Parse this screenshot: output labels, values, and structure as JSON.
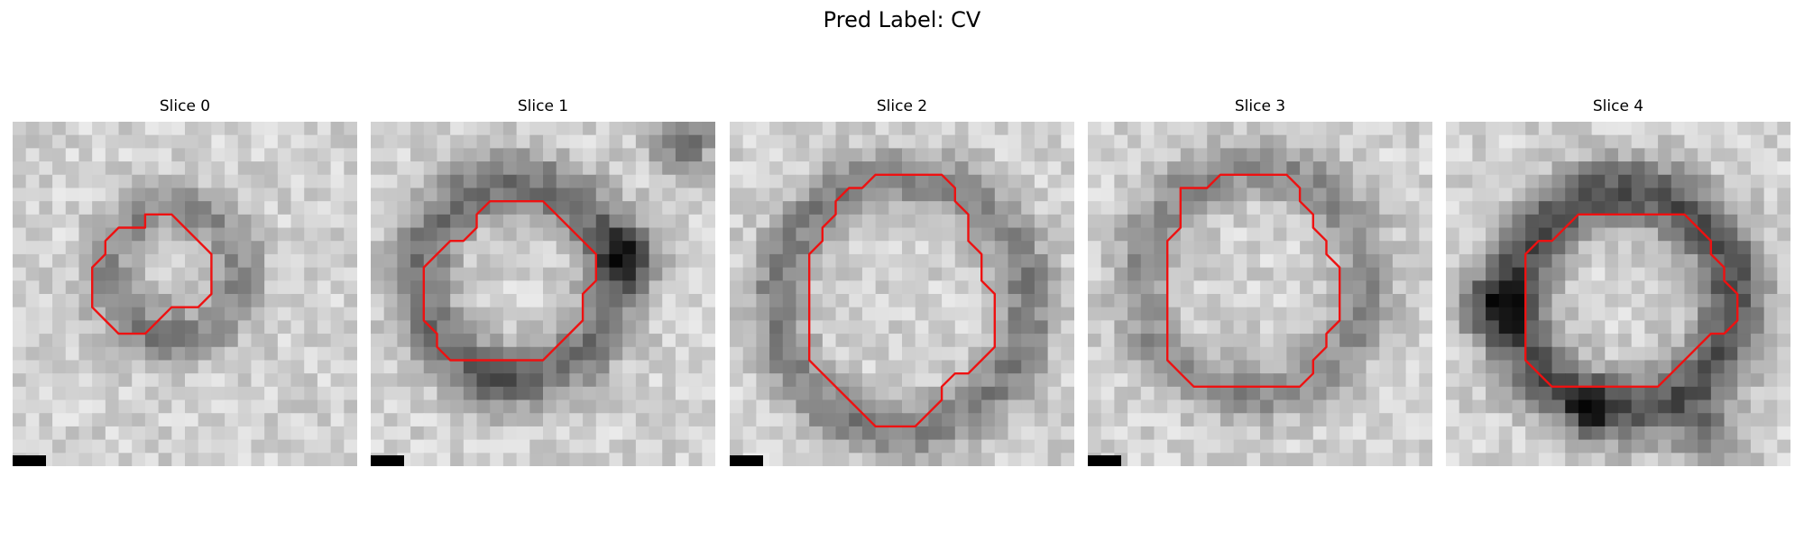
{
  "figure": {
    "suptitle": "Pred Label: CV",
    "contour_color": "#ee1111"
  },
  "panels": [
    {
      "title": "Slice 0",
      "scale_bar": true,
      "grid_size": 26,
      "contour": [
        [
          8,
          8
        ],
        [
          10,
          8
        ],
        [
          10,
          7
        ],
        [
          12,
          7
        ],
        [
          13,
          8
        ],
        [
          14,
          9
        ],
        [
          15,
          10
        ],
        [
          15,
          13
        ],
        [
          14,
          14
        ],
        [
          12,
          14
        ],
        [
          11,
          15
        ],
        [
          10,
          16
        ],
        [
          8,
          16
        ],
        [
          7,
          15
        ],
        [
          6,
          14
        ],
        [
          6,
          11
        ],
        [
          7,
          10
        ],
        [
          7,
          9
        ]
      ],
      "features": [
        {
          "type": "ring",
          "cx": 12.2,
          "cy": 11.5,
          "r": 5.0,
          "width": 2.0,
          "strength": 0.28
        },
        {
          "type": "blob",
          "cx": 11.5,
          "cy": 14.5,
          "r": 2.0,
          "strength": 0.12
        }
      ]
    },
    {
      "title": "Slice 1",
      "scale_bar": true,
      "grid_size": 26,
      "contour": [
        [
          9,
          6
        ],
        [
          13,
          6
        ],
        [
          14,
          7
        ],
        [
          15,
          8
        ],
        [
          16,
          9
        ],
        [
          17,
          10
        ],
        [
          17,
          12
        ],
        [
          16,
          13
        ],
        [
          16,
          15
        ],
        [
          15,
          16
        ],
        [
          14,
          17
        ],
        [
          13,
          18
        ],
        [
          6,
          18
        ],
        [
          5,
          17
        ],
        [
          5,
          16
        ],
        [
          4,
          15
        ],
        [
          4,
          11
        ],
        [
          5,
          10
        ],
        [
          6,
          9
        ],
        [
          7,
          9
        ],
        [
          8,
          8
        ],
        [
          8,
          7
        ]
      ],
      "features": [
        {
          "type": "ring",
          "cx": 11.0,
          "cy": 12.0,
          "r": 7.3,
          "width": 2.4,
          "strength": 0.38
        },
        {
          "type": "blob",
          "cx": 19.5,
          "cy": 10.0,
          "r": 2.3,
          "strength": 0.45
        },
        {
          "type": "blob",
          "cx": 23.5,
          "cy": 1.5,
          "r": 2.3,
          "strength": 0.4
        },
        {
          "type": "blob",
          "cx": 9.0,
          "cy": 20.0,
          "r": 1.8,
          "strength": 0.22
        }
      ]
    },
    {
      "title": "Slice 2",
      "scale_bar": true,
      "grid_size": 26,
      "contour": [
        [
          11,
          4
        ],
        [
          16,
          4
        ],
        [
          17,
          5
        ],
        [
          17,
          6
        ],
        [
          18,
          7
        ],
        [
          18,
          9
        ],
        [
          19,
          10
        ],
        [
          19,
          12
        ],
        [
          20,
          13
        ],
        [
          20,
          17
        ],
        [
          19,
          18
        ],
        [
          18,
          19
        ],
        [
          17,
          19
        ],
        [
          16,
          20
        ],
        [
          16,
          21
        ],
        [
          15,
          22
        ],
        [
          14,
          23
        ],
        [
          11,
          23
        ],
        [
          10,
          22
        ],
        [
          9,
          21
        ],
        [
          7,
          19
        ],
        [
          6,
          18
        ],
        [
          6,
          10
        ],
        [
          7,
          9
        ],
        [
          7,
          8
        ],
        [
          8,
          7
        ],
        [
          8,
          6
        ],
        [
          9,
          5
        ],
        [
          10,
          5
        ]
      ],
      "features": [
        {
          "type": "ring",
          "cx": 13.0,
          "cy": 13.8,
          "r": 9.5,
          "width": 2.2,
          "strength": 0.32
        }
      ]
    },
    {
      "title": "Slice 3",
      "scale_bar": true,
      "grid_size": 26,
      "contour": [
        [
          10,
          4
        ],
        [
          15,
          4
        ],
        [
          16,
          5
        ],
        [
          16,
          6
        ],
        [
          17,
          7
        ],
        [
          17,
          8
        ],
        [
          18,
          9
        ],
        [
          18,
          10
        ],
        [
          19,
          11
        ],
        [
          19,
          15
        ],
        [
          18,
          16
        ],
        [
          18,
          17
        ],
        [
          17,
          18
        ],
        [
          17,
          19
        ],
        [
          16,
          20
        ],
        [
          8,
          20
        ],
        [
          7,
          19
        ],
        [
          6,
          18
        ],
        [
          6,
          9
        ],
        [
          7,
          8
        ],
        [
          7,
          5
        ],
        [
          9,
          5
        ]
      ],
      "features": [
        {
          "type": "ring",
          "cx": 12.5,
          "cy": 12.0,
          "r": 8.5,
          "width": 2.2,
          "strength": 0.28
        }
      ]
    },
    {
      "title": "Slice 4",
      "scale_bar": false,
      "grid_size": 26,
      "contour": [
        [
          10,
          7
        ],
        [
          18,
          7
        ],
        [
          19,
          8
        ],
        [
          20,
          9
        ],
        [
          20,
          10
        ],
        [
          21,
          11
        ],
        [
          21,
          12
        ],
        [
          22,
          13
        ],
        [
          22,
          15
        ],
        [
          21,
          16
        ],
        [
          20,
          16
        ],
        [
          17,
          19
        ],
        [
          16,
          20
        ],
        [
          8,
          20
        ],
        [
          7,
          19
        ],
        [
          6,
          18
        ],
        [
          6,
          10
        ],
        [
          7,
          9
        ],
        [
          8,
          9
        ]
      ],
      "features": [
        {
          "type": "ring",
          "cx": 13.5,
          "cy": 13.5,
          "r": 8.2,
          "width": 2.6,
          "strength": 0.5
        },
        {
          "type": "blob",
          "cx": 3.5,
          "cy": 14.0,
          "r": 2.4,
          "strength": 0.45
        },
        {
          "type": "blob",
          "cx": 11.0,
          "cy": 21.5,
          "r": 1.8,
          "strength": 0.35
        },
        {
          "type": "blob",
          "cx": 20.0,
          "cy": 24.0,
          "r": 2.5,
          "strength": 0.3
        }
      ]
    }
  ]
}
